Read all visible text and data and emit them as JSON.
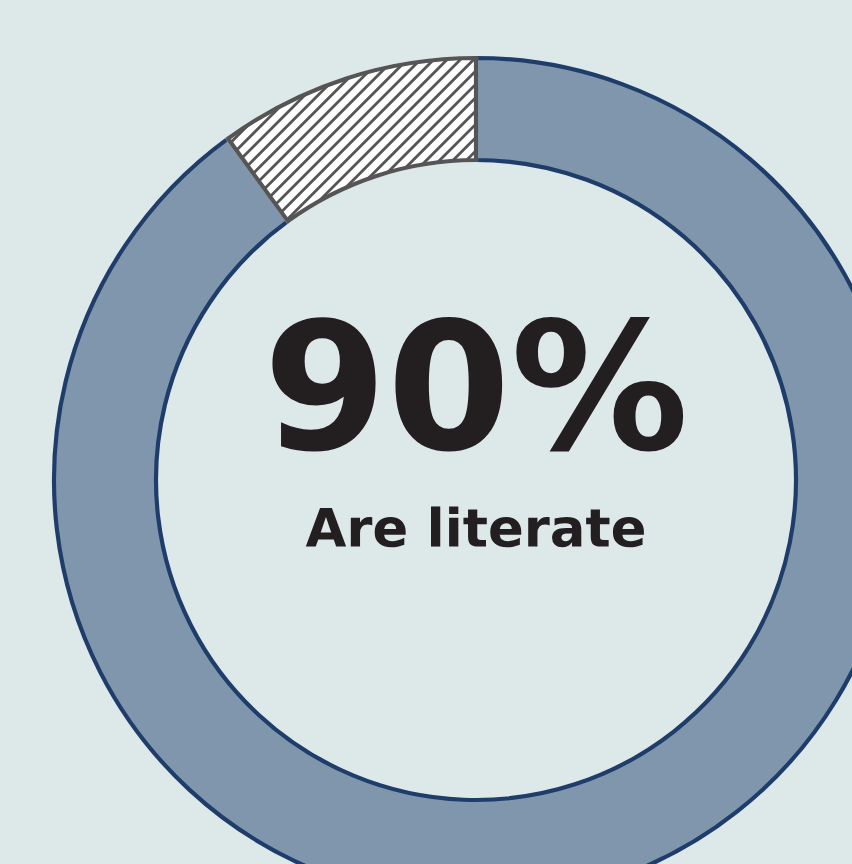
{
  "chart_data": {
    "type": "donut",
    "categories": [
      null,
      null
    ],
    "values": [
      90,
      10
    ],
    "colors": [
      "#8096ad",
      "#ffffff"
    ],
    "annotations": [
      "90%",
      "Are literate"
    ],
    "legend": false
  }
}
